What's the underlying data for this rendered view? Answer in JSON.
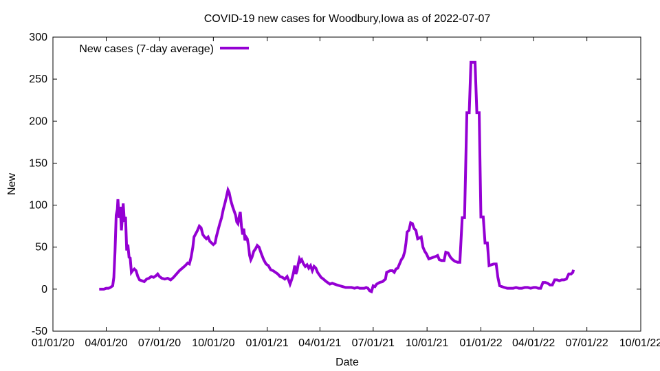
{
  "chart_data": {
    "type": "line",
    "title": "COVID-19 new cases for Woodbury,Iowa as of 2022-07-07",
    "xlabel": "Date",
    "ylabel": "New",
    "xlim": [
      "2020-01-01",
      "2022-10-01"
    ],
    "ylim": [
      -50,
      300
    ],
    "grid": false,
    "legend_position": "top-left",
    "x_ticks": [
      "01/01/20",
      "04/01/20",
      "07/01/20",
      "10/01/20",
      "01/01/21",
      "04/01/21",
      "07/01/21",
      "10/01/21",
      "01/01/22",
      "04/01/22",
      "07/01/22",
      "10/01/22"
    ],
    "y_ticks": [
      "-50",
      "0",
      "50",
      "100",
      "150",
      "200",
      "250",
      "300"
    ],
    "series": [
      {
        "name": "New cases (7-day average)",
        "color": "#9400d3",
        "points": [
          [
            "2020-03-20",
            0
          ],
          [
            "2020-03-24",
            0
          ],
          [
            "2020-03-28",
            0
          ],
          [
            "2020-04-01",
            1
          ],
          [
            "2020-04-05",
            1
          ],
          [
            "2020-04-08",
            2
          ],
          [
            "2020-04-12",
            4
          ],
          [
            "2020-04-14",
            14
          ],
          [
            "2020-04-16",
            45
          ],
          [
            "2020-04-18",
            88
          ],
          [
            "2020-04-20",
            95
          ],
          [
            "2020-04-21",
            107
          ],
          [
            "2020-04-23",
            85
          ],
          [
            "2020-04-25",
            98
          ],
          [
            "2020-04-27",
            70
          ],
          [
            "2020-04-29",
            90
          ],
          [
            "2020-04-30",
            102
          ],
          [
            "2020-05-02",
            80
          ],
          [
            "2020-05-04",
            86
          ],
          [
            "2020-05-06",
            46
          ],
          [
            "2020-05-08",
            53
          ],
          [
            "2020-05-10",
            38
          ],
          [
            "2020-05-12",
            37
          ],
          [
            "2020-05-14",
            20
          ],
          [
            "2020-05-16",
            22
          ],
          [
            "2020-05-19",
            24
          ],
          [
            "2020-05-22",
            22
          ],
          [
            "2020-05-25",
            15
          ],
          [
            "2020-05-28",
            11
          ],
          [
            "2020-06-01",
            10
          ],
          [
            "2020-06-05",
            9
          ],
          [
            "2020-06-09",
            12
          ],
          [
            "2020-06-13",
            13
          ],
          [
            "2020-06-17",
            15
          ],
          [
            "2020-06-21",
            14
          ],
          [
            "2020-06-25",
            16
          ],
          [
            "2020-06-28",
            18
          ],
          [
            "2020-07-01",
            15
          ],
          [
            "2020-07-05",
            13
          ],
          [
            "2020-07-10",
            12
          ],
          [
            "2020-07-15",
            13
          ],
          [
            "2020-07-20",
            11
          ],
          [
            "2020-07-25",
            14
          ],
          [
            "2020-07-30",
            18
          ],
          [
            "2020-08-04",
            22
          ],
          [
            "2020-08-09",
            25
          ],
          [
            "2020-08-14",
            28
          ],
          [
            "2020-08-18",
            31
          ],
          [
            "2020-08-21",
            30
          ],
          [
            "2020-08-24",
            38
          ],
          [
            "2020-08-27",
            50
          ],
          [
            "2020-08-29",
            62
          ],
          [
            "2020-09-01",
            66
          ],
          [
            "2020-09-04",
            70
          ],
          [
            "2020-09-07",
            75
          ],
          [
            "2020-09-10",
            73
          ],
          [
            "2020-09-13",
            65
          ],
          [
            "2020-09-16",
            62
          ],
          [
            "2020-09-19",
            60
          ],
          [
            "2020-09-22",
            62
          ],
          [
            "2020-09-25",
            57
          ],
          [
            "2020-09-28",
            55
          ],
          [
            "2020-10-01",
            53
          ],
          [
            "2020-10-04",
            55
          ],
          [
            "2020-10-06",
            62
          ],
          [
            "2020-10-09",
            70
          ],
          [
            "2020-10-12",
            78
          ],
          [
            "2020-10-15",
            85
          ],
          [
            "2020-10-18",
            95
          ],
          [
            "2020-10-21",
            103
          ],
          [
            "2020-10-24",
            112
          ],
          [
            "2020-10-26",
            118
          ],
          [
            "2020-10-28",
            115
          ],
          [
            "2020-10-31",
            105
          ],
          [
            "2020-11-03",
            98
          ],
          [
            "2020-11-06",
            92
          ],
          [
            "2020-11-08",
            88
          ],
          [
            "2020-11-10",
            80
          ],
          [
            "2020-11-12",
            78
          ],
          [
            "2020-11-14",
            86
          ],
          [
            "2020-11-16",
            92
          ],
          [
            "2020-11-18",
            75
          ],
          [
            "2020-11-20",
            65
          ],
          [
            "2020-11-22",
            72
          ],
          [
            "2020-11-24",
            58
          ],
          [
            "2020-11-26",
            62
          ],
          [
            "2020-11-28",
            60
          ],
          [
            "2020-11-30",
            52
          ],
          [
            "2020-12-02",
            40
          ],
          [
            "2020-12-04",
            35
          ],
          [
            "2020-12-06",
            38
          ],
          [
            "2020-12-09",
            45
          ],
          [
            "2020-12-12",
            48
          ],
          [
            "2020-12-15",
            52
          ],
          [
            "2020-12-18",
            50
          ],
          [
            "2020-12-22",
            42
          ],
          [
            "2020-12-26",
            35
          ],
          [
            "2020-12-30",
            30
          ],
          [
            "2021-01-03",
            28
          ],
          [
            "2021-01-07",
            23
          ],
          [
            "2021-01-11",
            22
          ],
          [
            "2021-01-15",
            20
          ],
          [
            "2021-01-19",
            18
          ],
          [
            "2021-01-23",
            15
          ],
          [
            "2021-01-27",
            14
          ],
          [
            "2021-01-31",
            12
          ],
          [
            "2021-02-04",
            15
          ],
          [
            "2021-02-07",
            10
          ],
          [
            "2021-02-09",
            6
          ],
          [
            "2021-02-12",
            12
          ],
          [
            "2021-02-15",
            20
          ],
          [
            "2021-02-17",
            28
          ],
          [
            "2021-02-19",
            18
          ],
          [
            "2021-02-21",
            22
          ],
          [
            "2021-02-23",
            30
          ],
          [
            "2021-02-25",
            36
          ],
          [
            "2021-02-27",
            33
          ],
          [
            "2021-03-01",
            35
          ],
          [
            "2021-03-04",
            30
          ],
          [
            "2021-03-07",
            27
          ],
          [
            "2021-03-10",
            29
          ],
          [
            "2021-03-13",
            25
          ],
          [
            "2021-03-16",
            28
          ],
          [
            "2021-03-19",
            22
          ],
          [
            "2021-03-22",
            27
          ],
          [
            "2021-03-25",
            25
          ],
          [
            "2021-03-28",
            20
          ],
          [
            "2021-03-31",
            17
          ],
          [
            "2021-04-03",
            14
          ],
          [
            "2021-04-07",
            12
          ],
          [
            "2021-04-10",
            10
          ],
          [
            "2021-04-14",
            8
          ],
          [
            "2021-04-18",
            6
          ],
          [
            "2021-04-22",
            7
          ],
          [
            "2021-04-26",
            6
          ],
          [
            "2021-04-30",
            5
          ],
          [
            "2021-05-05",
            4
          ],
          [
            "2021-05-10",
            3
          ],
          [
            "2021-05-15",
            2
          ],
          [
            "2021-05-20",
            2
          ],
          [
            "2021-05-25",
            2
          ],
          [
            "2021-05-30",
            1
          ],
          [
            "2021-06-04",
            2
          ],
          [
            "2021-06-08",
            1
          ],
          [
            "2021-06-12",
            1
          ],
          [
            "2021-06-16",
            1
          ],
          [
            "2021-06-19",
            2
          ],
          [
            "2021-06-22",
            1
          ],
          [
            "2021-06-25",
            -2
          ],
          [
            "2021-06-28",
            -3
          ],
          [
            "2021-07-01",
            4
          ],
          [
            "2021-07-04",
            3
          ],
          [
            "2021-07-07",
            6
          ],
          [
            "2021-07-12",
            8
          ],
          [
            "2021-07-17",
            9
          ],
          [
            "2021-07-22",
            12
          ],
          [
            "2021-07-24",
            20
          ],
          [
            "2021-07-27",
            21
          ],
          [
            "2021-07-30",
            22
          ],
          [
            "2021-08-03",
            22
          ],
          [
            "2021-08-06",
            20
          ],
          [
            "2021-08-09",
            24
          ],
          [
            "2021-08-12",
            25
          ],
          [
            "2021-08-15",
            30
          ],
          [
            "2021-08-18",
            35
          ],
          [
            "2021-08-21",
            38
          ],
          [
            "2021-08-24",
            45
          ],
          [
            "2021-08-26",
            55
          ],
          [
            "2021-08-28",
            68
          ],
          [
            "2021-08-31",
            70
          ],
          [
            "2021-09-03",
            79
          ],
          [
            "2021-09-06",
            78
          ],
          [
            "2021-09-09",
            72
          ],
          [
            "2021-09-12",
            70
          ],
          [
            "2021-09-15",
            60
          ],
          [
            "2021-09-18",
            61
          ],
          [
            "2021-09-21",
            62
          ],
          [
            "2021-09-24",
            50
          ],
          [
            "2021-09-27",
            45
          ],
          [
            "2021-09-30",
            42
          ],
          [
            "2021-10-04",
            36
          ],
          [
            "2021-10-08",
            37
          ],
          [
            "2021-10-12",
            38
          ],
          [
            "2021-10-16",
            39
          ],
          [
            "2021-10-19",
            40
          ],
          [
            "2021-10-22",
            35
          ],
          [
            "2021-10-26",
            34
          ],
          [
            "2021-10-30",
            34
          ],
          [
            "2021-11-02",
            44
          ],
          [
            "2021-11-06",
            43
          ],
          [
            "2021-11-10",
            38
          ],
          [
            "2021-11-14",
            35
          ],
          [
            "2021-11-18",
            33
          ],
          [
            "2021-11-22",
            32
          ],
          [
            "2021-11-26",
            32
          ],
          [
            "2021-11-30",
            85
          ],
          [
            "2021-12-04",
            85
          ],
          [
            "2021-12-08",
            210
          ],
          [
            "2021-12-12",
            210
          ],
          [
            "2021-12-15",
            270
          ],
          [
            "2021-12-19",
            270
          ],
          [
            "2021-12-22",
            270
          ],
          [
            "2021-12-25",
            210
          ],
          [
            "2021-12-29",
            210
          ],
          [
            "2022-01-01",
            86
          ],
          [
            "2022-01-05",
            86
          ],
          [
            "2022-01-08",
            55
          ],
          [
            "2022-01-12",
            55
          ],
          [
            "2022-01-15",
            28
          ],
          [
            "2022-01-19",
            29
          ],
          [
            "2022-01-23",
            30
          ],
          [
            "2022-01-27",
            30
          ],
          [
            "2022-01-30",
            14
          ],
          [
            "2022-02-02",
            4
          ],
          [
            "2022-02-06",
            3
          ],
          [
            "2022-02-10",
            2
          ],
          [
            "2022-02-15",
            1
          ],
          [
            "2022-02-20",
            1
          ],
          [
            "2022-02-25",
            1
          ],
          [
            "2022-03-02",
            2
          ],
          [
            "2022-03-07",
            1
          ],
          [
            "2022-03-12",
            1
          ],
          [
            "2022-03-17",
            2
          ],
          [
            "2022-03-22",
            2
          ],
          [
            "2022-03-27",
            1
          ],
          [
            "2022-04-01",
            2
          ],
          [
            "2022-04-05",
            2
          ],
          [
            "2022-04-09",
            1
          ],
          [
            "2022-04-13",
            1
          ],
          [
            "2022-04-17",
            8
          ],
          [
            "2022-04-21",
            8
          ],
          [
            "2022-04-25",
            7
          ],
          [
            "2022-04-29",
            5
          ],
          [
            "2022-05-03",
            5
          ],
          [
            "2022-05-07",
            11
          ],
          [
            "2022-05-11",
            11
          ],
          [
            "2022-05-15",
            10
          ],
          [
            "2022-05-19",
            11
          ],
          [
            "2022-05-23",
            11
          ],
          [
            "2022-05-27",
            12
          ],
          [
            "2022-05-31",
            18
          ],
          [
            "2022-06-04",
            18
          ],
          [
            "2022-06-07",
            20
          ],
          [
            "2022-06-08",
            23
          ]
        ]
      }
    ]
  }
}
